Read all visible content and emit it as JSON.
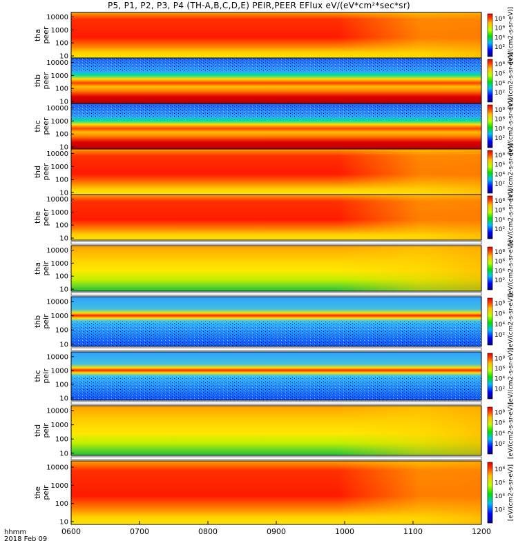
{
  "chart_data": {
    "type": "heatmap",
    "title": "P5, P1, P2, P3, P4 (TH-A,B,C,D,E) PEIR,PEER EFlux eV/(eV*cm²*sec*sr)",
    "x_ticks": [
      "0600",
      "0700",
      "0800",
      "0900",
      "1000",
      "1100",
      "1200"
    ],
    "x_range": [
      "0600",
      "1200"
    ],
    "x_axis_label_line1": "hhmm",
    "x_axis_label_line2": "2018 Feb 09",
    "y_ticks": [
      "10",
      "100",
      "1000",
      "10000"
    ],
    "y_scale": "log",
    "colorbar_ticks": [
      "10²",
      "10⁴",
      "10⁶",
      "10⁸"
    ],
    "colorbar_unit": "[eV/(cm2-s-sr-eV)]",
    "panels": [
      {
        "label1": "tha",
        "label2": "peer",
        "base": "red-hi"
      },
      {
        "label1": "thb",
        "label2": "peer",
        "base": "banded"
      },
      {
        "label1": "thc",
        "label2": "peer",
        "base": "banded"
      },
      {
        "label1": "thd",
        "label2": "peer",
        "base": "red-hi"
      },
      {
        "label1": "the",
        "label2": "peer",
        "base": "red-hi"
      },
      {
        "label1": "tha",
        "label2": "peir",
        "base": "yellow"
      },
      {
        "label1": "thb",
        "label2": "peir",
        "base": "noise"
      },
      {
        "label1": "thc",
        "label2": "peir",
        "base": "noise"
      },
      {
        "label1": "thd",
        "label2": "peir",
        "base": "yellow"
      },
      {
        "label1": "the",
        "label2": "peir",
        "base": "red-hi"
      }
    ]
  },
  "colors": {
    "high": "#e00000",
    "mid": "#ffc000",
    "low": "#00c000",
    "noise": "#1e6bff",
    "background": "#ffffff"
  }
}
